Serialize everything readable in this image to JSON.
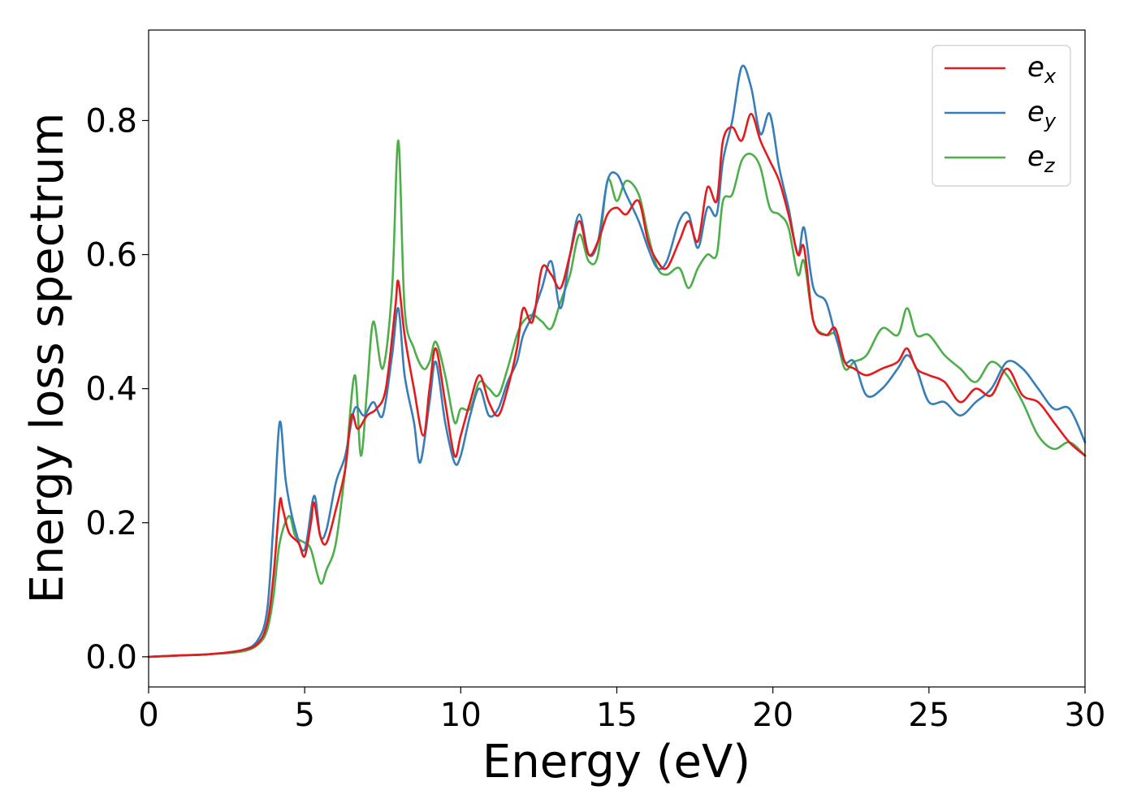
{
  "chart_data": {
    "type": "line",
    "xlabel": "Energy (eV)",
    "ylabel": "Energy loss spectrum",
    "xlim": [
      0,
      30
    ],
    "ylim": [
      -0.045,
      0.935
    ],
    "xticks": [
      0,
      5,
      10,
      15,
      20,
      25,
      30
    ],
    "xtick_labels": [
      "0",
      "5",
      "10",
      "15",
      "20",
      "25",
      "30"
    ],
    "yticks": [
      0.0,
      0.2,
      0.4,
      0.6,
      0.8
    ],
    "ytick_labels": [
      "0.0",
      "0.2",
      "0.4",
      "0.6",
      "0.8"
    ],
    "grid": false,
    "legend_position": "top-right",
    "series": [
      {
        "name": "e_x",
        "legend_main": "e",
        "legend_sub": "x",
        "color": "#e41a1c",
        "points": [
          [
            0,
            0
          ],
          [
            1,
            0.002
          ],
          [
            2,
            0.004
          ],
          [
            3,
            0.01
          ],
          [
            3.5,
            0.02
          ],
          [
            3.8,
            0.05
          ],
          [
            4.0,
            0.12
          ],
          [
            4.2,
            0.23
          ],
          [
            4.3,
            0.22
          ],
          [
            4.5,
            0.185
          ],
          [
            4.8,
            0.17
          ],
          [
            5.0,
            0.15
          ],
          [
            5.2,
            0.2
          ],
          [
            5.3,
            0.23
          ],
          [
            5.5,
            0.18
          ],
          [
            5.7,
            0.17
          ],
          [
            6.0,
            0.22
          ],
          [
            6.3,
            0.28
          ],
          [
            6.5,
            0.36
          ],
          [
            6.7,
            0.34
          ],
          [
            7.0,
            0.36
          ],
          [
            7.3,
            0.37
          ],
          [
            7.6,
            0.4
          ],
          [
            7.9,
            0.52
          ],
          [
            8.0,
            0.56
          ],
          [
            8.2,
            0.48
          ],
          [
            8.5,
            0.4
          ],
          [
            8.8,
            0.33
          ],
          [
            9.0,
            0.4
          ],
          [
            9.2,
            0.46
          ],
          [
            9.5,
            0.38
          ],
          [
            9.8,
            0.3
          ],
          [
            10.0,
            0.33
          ],
          [
            10.3,
            0.38
          ],
          [
            10.6,
            0.42
          ],
          [
            10.9,
            0.38
          ],
          [
            11.2,
            0.36
          ],
          [
            11.5,
            0.4
          ],
          [
            11.8,
            0.46
          ],
          [
            12.0,
            0.52
          ],
          [
            12.3,
            0.5
          ],
          [
            12.6,
            0.58
          ],
          [
            12.9,
            0.57
          ],
          [
            13.2,
            0.55
          ],
          [
            13.5,
            0.6
          ],
          [
            13.8,
            0.65
          ],
          [
            14.1,
            0.6
          ],
          [
            14.4,
            0.62
          ],
          [
            14.7,
            0.66
          ],
          [
            15.0,
            0.67
          ],
          [
            15.3,
            0.66
          ],
          [
            15.7,
            0.68
          ],
          [
            16.0,
            0.62
          ],
          [
            16.3,
            0.59
          ],
          [
            16.6,
            0.58
          ],
          [
            17.0,
            0.62
          ],
          [
            17.3,
            0.65
          ],
          [
            17.6,
            0.62
          ],
          [
            17.9,
            0.7
          ],
          [
            18.2,
            0.68
          ],
          [
            18.4,
            0.77
          ],
          [
            18.7,
            0.79
          ],
          [
            19.0,
            0.77
          ],
          [
            19.3,
            0.81
          ],
          [
            19.6,
            0.77
          ],
          [
            19.9,
            0.74
          ],
          [
            20.2,
            0.71
          ],
          [
            20.5,
            0.66
          ],
          [
            20.8,
            0.6
          ],
          [
            21.0,
            0.61
          ],
          [
            21.3,
            0.5
          ],
          [
            21.7,
            0.48
          ],
          [
            22.0,
            0.49
          ],
          [
            22.3,
            0.44
          ],
          [
            22.6,
            0.43
          ],
          [
            23.0,
            0.42
          ],
          [
            23.5,
            0.43
          ],
          [
            24.0,
            0.44
          ],
          [
            24.3,
            0.46
          ],
          [
            24.6,
            0.43
          ],
          [
            25.0,
            0.42
          ],
          [
            25.5,
            0.41
          ],
          [
            26.0,
            0.38
          ],
          [
            26.5,
            0.4
          ],
          [
            27.0,
            0.39
          ],
          [
            27.5,
            0.43
          ],
          [
            28.0,
            0.39
          ],
          [
            28.5,
            0.38
          ],
          [
            29.0,
            0.35
          ],
          [
            29.5,
            0.32
          ],
          [
            30.0,
            0.3
          ]
        ]
      },
      {
        "name": "e_y",
        "legend_main": "e",
        "legend_sub": "y",
        "color": "#377eb8",
        "points": [
          [
            0,
            0
          ],
          [
            1,
            0.002
          ],
          [
            2,
            0.004
          ],
          [
            3,
            0.01
          ],
          [
            3.5,
            0.025
          ],
          [
            3.8,
            0.07
          ],
          [
            4.0,
            0.2
          ],
          [
            4.2,
            0.35
          ],
          [
            4.4,
            0.26
          ],
          [
            4.7,
            0.19
          ],
          [
            5.0,
            0.16
          ],
          [
            5.3,
            0.24
          ],
          [
            5.5,
            0.18
          ],
          [
            5.7,
            0.19
          ],
          [
            6.0,
            0.26
          ],
          [
            6.3,
            0.3
          ],
          [
            6.6,
            0.37
          ],
          [
            6.9,
            0.36
          ],
          [
            7.2,
            0.38
          ],
          [
            7.5,
            0.36
          ],
          [
            7.8,
            0.45
          ],
          [
            8.0,
            0.52
          ],
          [
            8.2,
            0.42
          ],
          [
            8.5,
            0.35
          ],
          [
            8.7,
            0.29
          ],
          [
            9.0,
            0.38
          ],
          [
            9.2,
            0.44
          ],
          [
            9.5,
            0.35
          ],
          [
            9.8,
            0.29
          ],
          [
            10.0,
            0.3
          ],
          [
            10.3,
            0.36
          ],
          [
            10.6,
            0.4
          ],
          [
            10.9,
            0.36
          ],
          [
            11.2,
            0.37
          ],
          [
            11.5,
            0.41
          ],
          [
            11.8,
            0.44
          ],
          [
            12.0,
            0.48
          ],
          [
            12.3,
            0.51
          ],
          [
            12.6,
            0.55
          ],
          [
            12.9,
            0.59
          ],
          [
            13.2,
            0.52
          ],
          [
            13.5,
            0.6
          ],
          [
            13.8,
            0.66
          ],
          [
            14.1,
            0.6
          ],
          [
            14.4,
            0.62
          ],
          [
            14.7,
            0.71
          ],
          [
            15.0,
            0.72
          ],
          [
            15.3,
            0.69
          ],
          [
            15.7,
            0.65
          ],
          [
            16.0,
            0.61
          ],
          [
            16.3,
            0.58
          ],
          [
            16.6,
            0.59
          ],
          [
            17.0,
            0.65
          ],
          [
            17.3,
            0.66
          ],
          [
            17.6,
            0.61
          ],
          [
            17.9,
            0.67
          ],
          [
            18.2,
            0.66
          ],
          [
            18.4,
            0.74
          ],
          [
            18.7,
            0.8
          ],
          [
            19.0,
            0.88
          ],
          [
            19.3,
            0.85
          ],
          [
            19.6,
            0.78
          ],
          [
            19.9,
            0.81
          ],
          [
            20.2,
            0.73
          ],
          [
            20.5,
            0.67
          ],
          [
            20.8,
            0.6
          ],
          [
            21.0,
            0.64
          ],
          [
            21.3,
            0.55
          ],
          [
            21.7,
            0.53
          ],
          [
            22.0,
            0.48
          ],
          [
            22.3,
            0.44
          ],
          [
            22.6,
            0.44
          ],
          [
            23.0,
            0.39
          ],
          [
            23.5,
            0.4
          ],
          [
            24.0,
            0.43
          ],
          [
            24.3,
            0.45
          ],
          [
            24.6,
            0.43
          ],
          [
            25.0,
            0.38
          ],
          [
            25.5,
            0.38
          ],
          [
            26.0,
            0.36
          ],
          [
            26.5,
            0.38
          ],
          [
            27.0,
            0.4
          ],
          [
            27.5,
            0.44
          ],
          [
            28.0,
            0.43
          ],
          [
            28.5,
            0.4
          ],
          [
            29.0,
            0.37
          ],
          [
            29.5,
            0.37
          ],
          [
            30.0,
            0.32
          ]
        ]
      },
      {
        "name": "e_z",
        "legend_main": "e",
        "legend_sub": "z",
        "color": "#4daf4a",
        "points": [
          [
            0,
            0
          ],
          [
            1,
            0.002
          ],
          [
            2,
            0.004
          ],
          [
            3,
            0.008
          ],
          [
            3.5,
            0.018
          ],
          [
            3.8,
            0.04
          ],
          [
            4.0,
            0.09
          ],
          [
            4.2,
            0.17
          ],
          [
            4.5,
            0.21
          ],
          [
            4.7,
            0.18
          ],
          [
            5.0,
            0.17
          ],
          [
            5.2,
            0.16
          ],
          [
            5.5,
            0.11
          ],
          [
            5.7,
            0.13
          ],
          [
            6.0,
            0.17
          ],
          [
            6.3,
            0.28
          ],
          [
            6.6,
            0.42
          ],
          [
            6.8,
            0.3
          ],
          [
            7.0,
            0.4
          ],
          [
            7.2,
            0.5
          ],
          [
            7.5,
            0.43
          ],
          [
            7.8,
            0.55
          ],
          [
            8.0,
            0.77
          ],
          [
            8.2,
            0.52
          ],
          [
            8.5,
            0.46
          ],
          [
            8.8,
            0.43
          ],
          [
            9.0,
            0.44
          ],
          [
            9.2,
            0.47
          ],
          [
            9.5,
            0.42
          ],
          [
            9.8,
            0.35
          ],
          [
            10.0,
            0.37
          ],
          [
            10.3,
            0.37
          ],
          [
            10.6,
            0.41
          ],
          [
            10.9,
            0.4
          ],
          [
            11.2,
            0.39
          ],
          [
            11.5,
            0.43
          ],
          [
            11.8,
            0.48
          ],
          [
            12.0,
            0.5
          ],
          [
            12.3,
            0.51
          ],
          [
            12.6,
            0.5
          ],
          [
            12.9,
            0.49
          ],
          [
            13.2,
            0.53
          ],
          [
            13.5,
            0.57
          ],
          [
            13.8,
            0.63
          ],
          [
            14.1,
            0.59
          ],
          [
            14.4,
            0.6
          ],
          [
            14.7,
            0.71
          ],
          [
            15.0,
            0.68
          ],
          [
            15.3,
            0.71
          ],
          [
            15.7,
            0.69
          ],
          [
            16.0,
            0.63
          ],
          [
            16.3,
            0.58
          ],
          [
            16.6,
            0.57
          ],
          [
            17.0,
            0.58
          ],
          [
            17.3,
            0.55
          ],
          [
            17.6,
            0.58
          ],
          [
            17.9,
            0.6
          ],
          [
            18.2,
            0.6
          ],
          [
            18.4,
            0.68
          ],
          [
            18.7,
            0.69
          ],
          [
            19.0,
            0.74
          ],
          [
            19.3,
            0.75
          ],
          [
            19.6,
            0.73
          ],
          [
            19.9,
            0.67
          ],
          [
            20.2,
            0.66
          ],
          [
            20.5,
            0.64
          ],
          [
            20.8,
            0.57
          ],
          [
            21.0,
            0.59
          ],
          [
            21.3,
            0.5
          ],
          [
            21.7,
            0.48
          ],
          [
            22.0,
            0.48
          ],
          [
            22.3,
            0.43
          ],
          [
            22.6,
            0.44
          ],
          [
            23.0,
            0.45
          ],
          [
            23.5,
            0.49
          ],
          [
            24.0,
            0.48
          ],
          [
            24.3,
            0.52
          ],
          [
            24.6,
            0.48
          ],
          [
            25.0,
            0.48
          ],
          [
            25.5,
            0.45
          ],
          [
            26.0,
            0.43
          ],
          [
            26.5,
            0.41
          ],
          [
            27.0,
            0.44
          ],
          [
            27.5,
            0.42
          ],
          [
            28.0,
            0.38
          ],
          [
            28.5,
            0.33
          ],
          [
            29.0,
            0.31
          ],
          [
            29.5,
            0.32
          ],
          [
            30.0,
            0.3
          ]
        ]
      }
    ]
  }
}
